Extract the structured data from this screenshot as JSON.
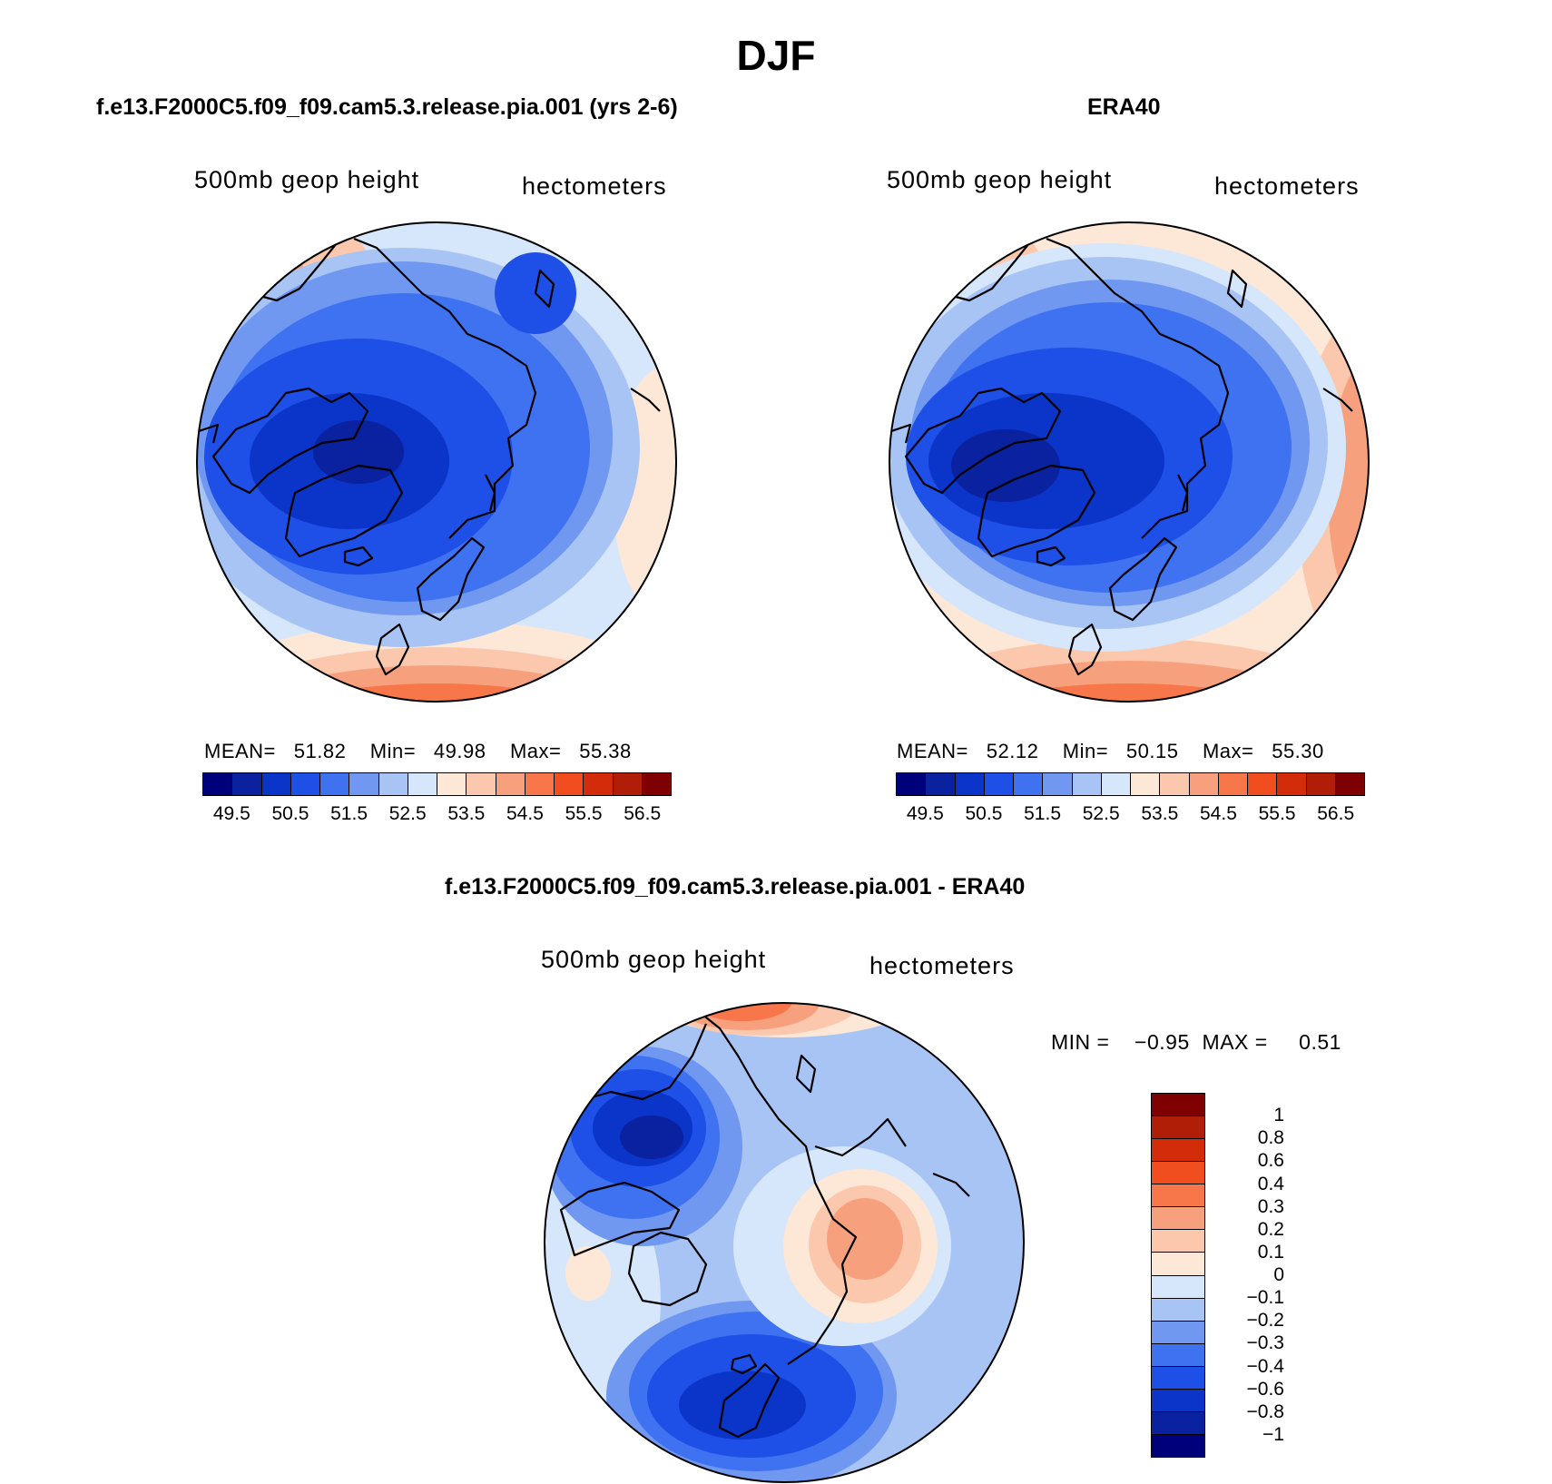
{
  "figure": {
    "title": "DJF"
  },
  "palettes": {
    "main": [
      "#00007a",
      "#0a21a0",
      "#0a35c8",
      "#1e4fe6",
      "#3f72f0",
      "#7098f0",
      "#a8c4f4",
      "#d6e6fb",
      "#fde8d8",
      "#fbc8ae",
      "#f7a07e",
      "#f7764a",
      "#f04e1e",
      "#d22c0a",
      "#b01e08",
      "#7e0000"
    ],
    "diff": [
      "#7e0000",
      "#b01e08",
      "#d22c0a",
      "#f04e1e",
      "#f7764a",
      "#f7a07e",
      "#fbc8ae",
      "#fde8d8",
      "#d6e6fb",
      "#a8c4f4",
      "#7098f0",
      "#3f72f0",
      "#1e4fe6",
      "#0a35c8",
      "#0a21a0",
      "#00007a"
    ]
  },
  "panels": [
    {
      "title": "f.e13.F2000C5.f09_f09.cam5.3.release.pia.001 (yrs 2-6)",
      "left_label": "500mb geop height",
      "right_label": "hectometers",
      "stats": {
        "mean_label": "MEAN=",
        "mean": "51.82",
        "min_label": "Min=",
        "min": "49.98",
        "max_label": "Max=",
        "max": "55.38"
      },
      "colorbar_ticks": [
        "49.5",
        "50.5",
        "51.5",
        "52.5",
        "53.5",
        "54.5",
        "55.5",
        "56.5"
      ]
    },
    {
      "title": "ERA40",
      "left_label": "500mb geop height",
      "right_label": "hectometers",
      "stats": {
        "mean_label": "MEAN=",
        "mean": "52.12",
        "min_label": "Min=",
        "min": "50.15",
        "max_label": "Max=",
        "max": "55.30"
      },
      "colorbar_ticks": [
        "49.5",
        "50.5",
        "51.5",
        "52.5",
        "53.5",
        "54.5",
        "55.5",
        "56.5"
      ]
    },
    {
      "title": "f.e13.F2000C5.f09_f09.cam5.3.release.pia.001 - ERA40",
      "left_label": "500mb geop height",
      "right_label": "hectometers",
      "stats": {
        "min_label": "MIN =",
        "min": "−0.95",
        "max_label": "MAX =",
        "max": "0.51"
      },
      "colorbar_ticks": [
        "1",
        "0.8",
        "0.6",
        "0.4",
        "0.3",
        "0.2",
        "0.1",
        "0",
        "−0.1",
        "−0.2",
        "−0.3",
        "−0.4",
        "−0.6",
        "−0.8",
        "−1"
      ]
    }
  ]
}
